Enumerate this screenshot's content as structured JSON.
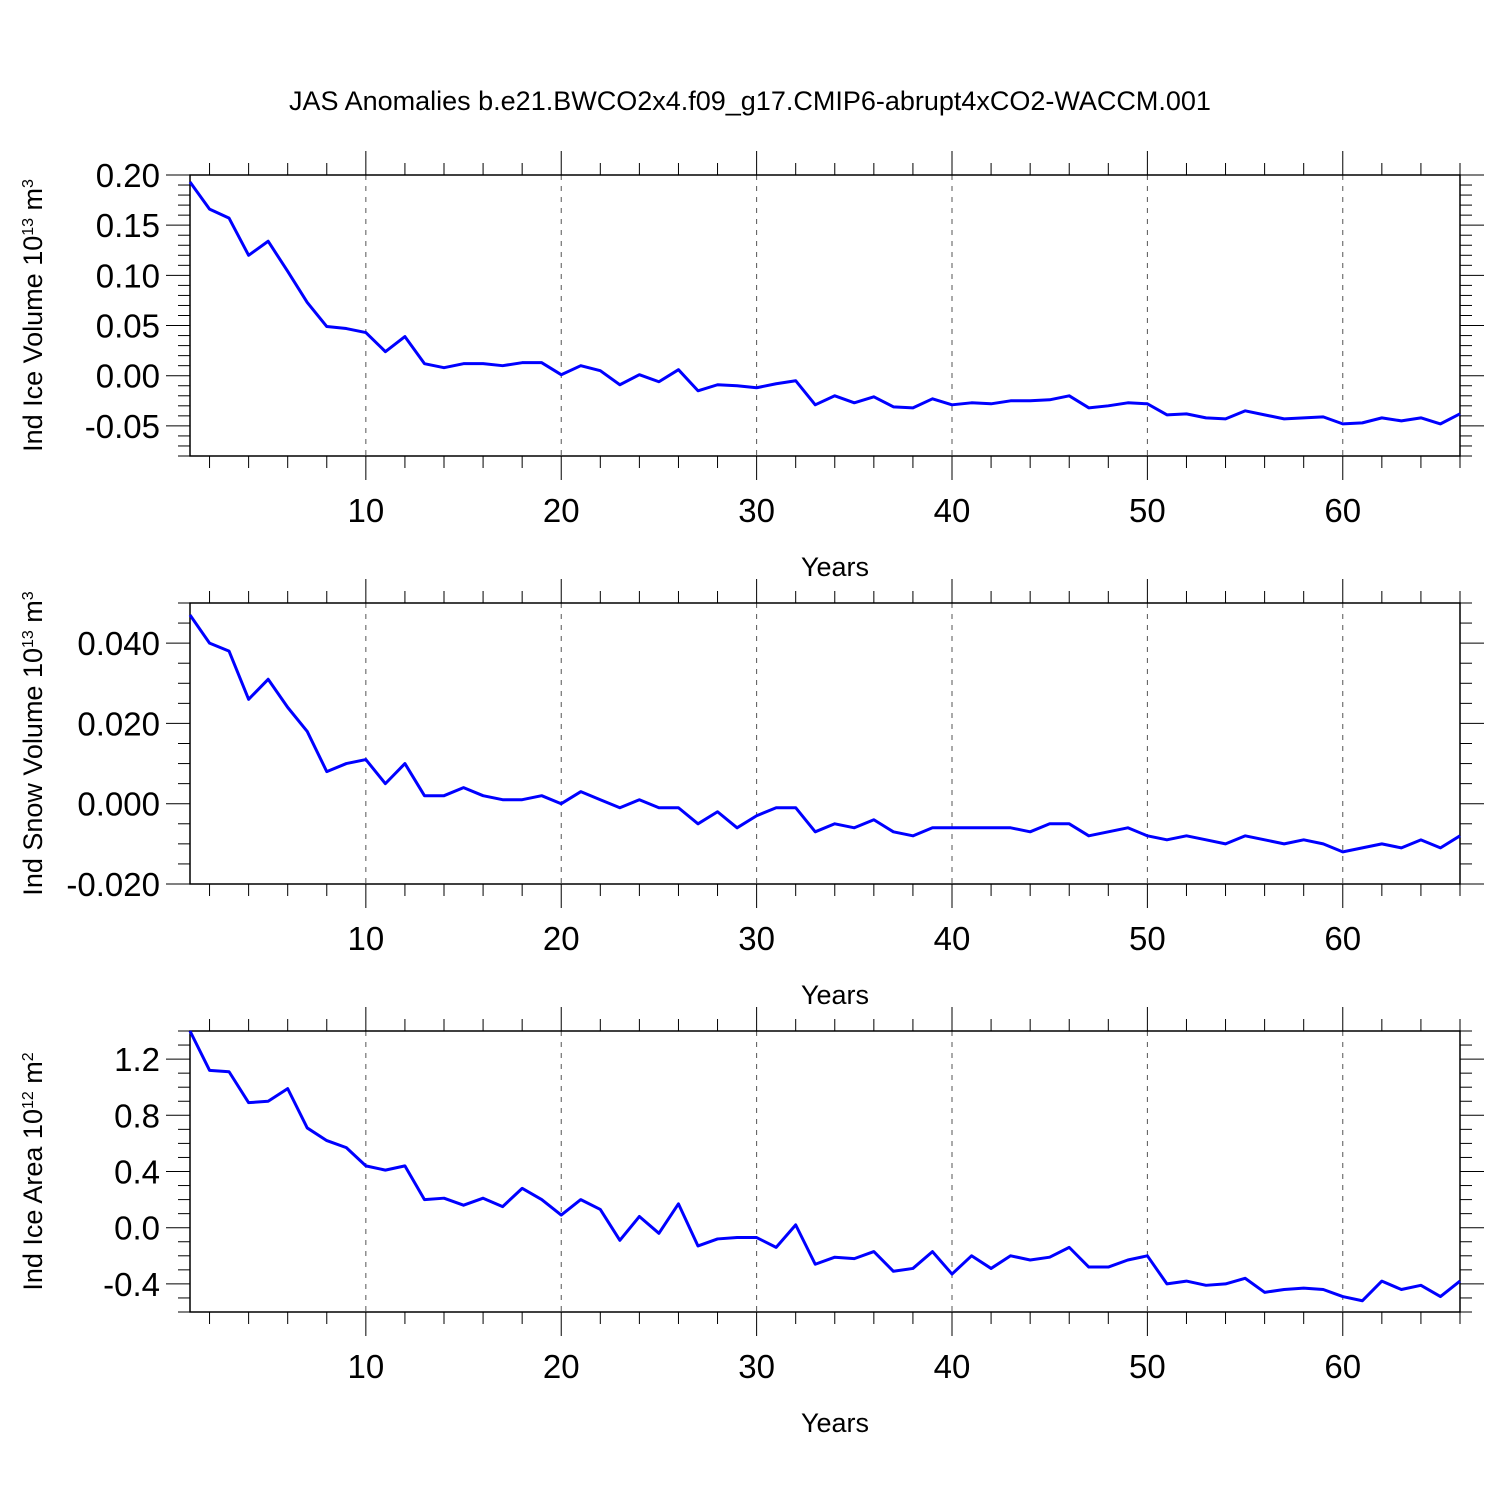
{
  "figure": {
    "title": "JAS Anomalies b.e21.BWCO2x4.f09_g17.CMIP6-abrupt4xCO2-WACCM.001"
  },
  "chart_data": [
    {
      "type": "line",
      "title": "JAS Anomalies b.e21.BWCO2x4.f09_g17.CMIP6-abrupt4xCO2-WACCM.001",
      "xlabel": "Years",
      "ylabel": {
        "main": "Ind Ice Volume 10",
        "exp": "13",
        "unit": " m",
        "unit_exp": "3"
      },
      "xlim": [
        1,
        66
      ],
      "ylim": [
        -0.08,
        0.2
      ],
      "xticks": [
        10,
        20,
        30,
        40,
        50,
        60
      ],
      "yticks": [
        -0.05,
        0.0,
        0.05,
        0.1,
        0.15,
        0.2
      ],
      "ytick_labels": [
        "-0.05",
        "0.00",
        "0.05",
        "0.10",
        "0.15",
        "0.20"
      ],
      "ytick_minor_step": 0.01,
      "gridlines": "x-dashed",
      "line_color": "#0000ff",
      "x": [
        1,
        2,
        3,
        4,
        5,
        6,
        7,
        8,
        9,
        10,
        11,
        12,
        13,
        14,
        15,
        16,
        17,
        18,
        19,
        20,
        21,
        22,
        23,
        24,
        25,
        26,
        27,
        28,
        29,
        30,
        31,
        32,
        33,
        34,
        35,
        36,
        37,
        38,
        39,
        40,
        41,
        42,
        43,
        44,
        45,
        46,
        47,
        48,
        49,
        50,
        51,
        52,
        53,
        54,
        55,
        56,
        57,
        58,
        59,
        60,
        61,
        62,
        63,
        64,
        65,
        66
      ],
      "values": [
        0.193,
        0.166,
        0.157,
        0.12,
        0.134,
        0.104,
        0.073,
        0.049,
        0.047,
        0.043,
        0.024,
        0.039,
        0.012,
        0.008,
        0.012,
        0.012,
        0.01,
        0.013,
        0.013,
        0.001,
        0.01,
        0.005,
        -0.009,
        0.001,
        -0.006,
        0.006,
        -0.015,
        -0.009,
        -0.01,
        -0.012,
        -0.008,
        -0.005,
        -0.029,
        -0.02,
        -0.027,
        -0.021,
        -0.031,
        -0.032,
        -0.023,
        -0.029,
        -0.027,
        -0.028,
        -0.025,
        -0.025,
        -0.024,
        -0.02,
        -0.032,
        -0.03,
        -0.027,
        -0.028,
        -0.039,
        -0.038,
        -0.042,
        -0.043,
        -0.035,
        -0.039,
        -0.043,
        -0.042,
        -0.041,
        -0.048,
        -0.047,
        -0.042,
        -0.045,
        -0.042,
        -0.048,
        -0.038
      ]
    },
    {
      "type": "line",
      "xlabel": "Years",
      "ylabel": {
        "main": "Ind Snow Volume 10",
        "exp": "13",
        "unit": " m",
        "unit_exp": "3"
      },
      "xlim": [
        1,
        66
      ],
      "ylim": [
        -0.02,
        0.05
      ],
      "xticks": [
        10,
        20,
        30,
        40,
        50,
        60
      ],
      "yticks": [
        -0.02,
        0.0,
        0.02,
        0.04
      ],
      "ytick_labels": [
        "-0.020",
        "0.000",
        "0.020",
        "0.040"
      ],
      "ytick_minor_step": 0.005,
      "gridlines": "x-dashed",
      "line_color": "#0000ff",
      "x": [
        1,
        2,
        3,
        4,
        5,
        6,
        7,
        8,
        9,
        10,
        11,
        12,
        13,
        14,
        15,
        16,
        17,
        18,
        19,
        20,
        21,
        22,
        23,
        24,
        25,
        26,
        27,
        28,
        29,
        30,
        31,
        32,
        33,
        34,
        35,
        36,
        37,
        38,
        39,
        40,
        41,
        42,
        43,
        44,
        45,
        46,
        47,
        48,
        49,
        50,
        51,
        52,
        53,
        54,
        55,
        56,
        57,
        58,
        59,
        60,
        61,
        62,
        63,
        64,
        65,
        66
      ],
      "values": [
        0.047,
        0.04,
        0.038,
        0.026,
        0.031,
        0.024,
        0.018,
        0.008,
        0.01,
        0.011,
        0.005,
        0.01,
        0.002,
        0.002,
        0.004,
        0.002,
        0.001,
        0.001,
        0.002,
        0.0,
        0.003,
        0.001,
        -0.001,
        0.001,
        -0.001,
        -0.001,
        -0.005,
        -0.002,
        -0.006,
        -0.003,
        -0.001,
        -0.001,
        -0.007,
        -0.005,
        -0.006,
        -0.004,
        -0.007,
        -0.008,
        -0.006,
        -0.006,
        -0.006,
        -0.006,
        -0.006,
        -0.007,
        -0.005,
        -0.005,
        -0.008,
        -0.007,
        -0.006,
        -0.008,
        -0.009,
        -0.008,
        -0.009,
        -0.01,
        -0.008,
        -0.009,
        -0.01,
        -0.009,
        -0.01,
        -0.012,
        -0.011,
        -0.01,
        -0.011,
        -0.009,
        -0.011,
        -0.008
      ]
    },
    {
      "type": "line",
      "xlabel": "Years",
      "ylabel": {
        "main": "Ind Ice Area 10",
        "exp": "12",
        "unit": " m",
        "unit_exp": "2"
      },
      "xlim": [
        1,
        66
      ],
      "ylim": [
        -0.6,
        1.4
      ],
      "xticks": [
        10,
        20,
        30,
        40,
        50,
        60
      ],
      "yticks": [
        -0.4,
        0.0,
        0.4,
        0.8,
        1.2
      ],
      "ytick_labels": [
        "-0.4",
        "0.0",
        "0.4",
        "0.8",
        "1.2"
      ],
      "ytick_minor_step": 0.1,
      "gridlines": "x-dashed",
      "line_color": "#0000ff",
      "x": [
        1,
        2,
        3,
        4,
        5,
        6,
        7,
        8,
        9,
        10,
        11,
        12,
        13,
        14,
        15,
        16,
        17,
        18,
        19,
        20,
        21,
        22,
        23,
        24,
        25,
        26,
        27,
        28,
        29,
        30,
        31,
        32,
        33,
        34,
        35,
        36,
        37,
        38,
        39,
        40,
        41,
        42,
        43,
        44,
        45,
        46,
        47,
        48,
        49,
        50,
        51,
        52,
        53,
        54,
        55,
        56,
        57,
        58,
        59,
        60,
        61,
        62,
        63,
        64,
        65,
        66
      ],
      "values": [
        1.4,
        1.12,
        1.11,
        0.89,
        0.9,
        0.99,
        0.71,
        0.62,
        0.57,
        0.44,
        0.41,
        0.44,
        0.2,
        0.21,
        0.16,
        0.21,
        0.15,
        0.28,
        0.2,
        0.09,
        0.2,
        0.13,
        -0.09,
        0.08,
        -0.04,
        0.17,
        -0.13,
        -0.08,
        -0.07,
        -0.07,
        -0.14,
        0.02,
        -0.26,
        -0.21,
        -0.22,
        -0.17,
        -0.31,
        -0.29,
        -0.17,
        -0.33,
        -0.2,
        -0.29,
        -0.2,
        -0.23,
        -0.21,
        -0.14,
        -0.28,
        -0.28,
        -0.23,
        -0.2,
        -0.4,
        -0.38,
        -0.41,
        -0.4,
        -0.36,
        -0.46,
        -0.44,
        -0.43,
        -0.44,
        -0.49,
        -0.52,
        -0.38,
        -0.44,
        -0.41,
        -0.49,
        -0.38
      ]
    }
  ]
}
